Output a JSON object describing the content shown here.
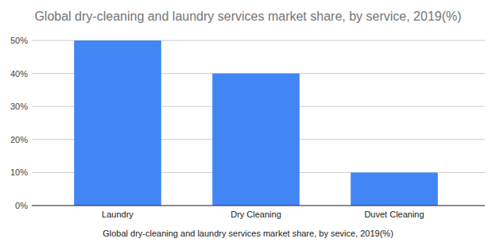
{
  "chart_data": {
    "type": "bar",
    "title": "Global dry-cleaning and laundry services market share, by service, 2019(%)",
    "x_label": "Global dry-cleaning and laundry services market share, by sevice, 2019(%)",
    "categories": [
      "Laundry",
      "Dry Cleaning",
      "Duvet Cleaning"
    ],
    "values": [
      50,
      40,
      10
    ],
    "color": "#4285f4",
    "ylim": [
      0,
      50
    ],
    "yticks": [
      {
        "value": 0,
        "label": "0%"
      },
      {
        "value": 10,
        "label": "10%"
      },
      {
        "value": 20,
        "label": "20%"
      },
      {
        "value": 30,
        "label": "30%"
      },
      {
        "value": 40,
        "label": "40%"
      },
      {
        "value": 50,
        "label": "50%"
      }
    ],
    "grid": true
  }
}
